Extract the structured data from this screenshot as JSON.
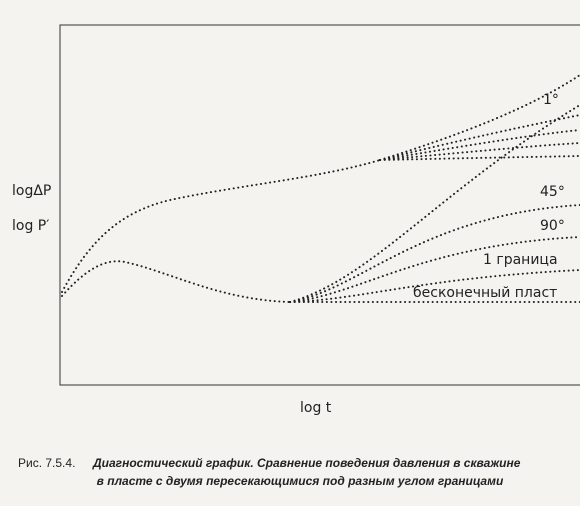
{
  "axes": {
    "y_labels": [
      "logΔP",
      "log P′"
    ],
    "x_label": "log t"
  },
  "curve_labels": [
    "1°",
    "45°",
    "90°",
    "1 граница",
    "бесконечный пласт"
  ],
  "caption": {
    "number": "Рис. 7.5.4.",
    "lines": [
      "Диагностический график. Сравнение поведения давления в скважине",
      "в пласте с двумя пересекающимися под разным углом границами"
    ]
  }
}
